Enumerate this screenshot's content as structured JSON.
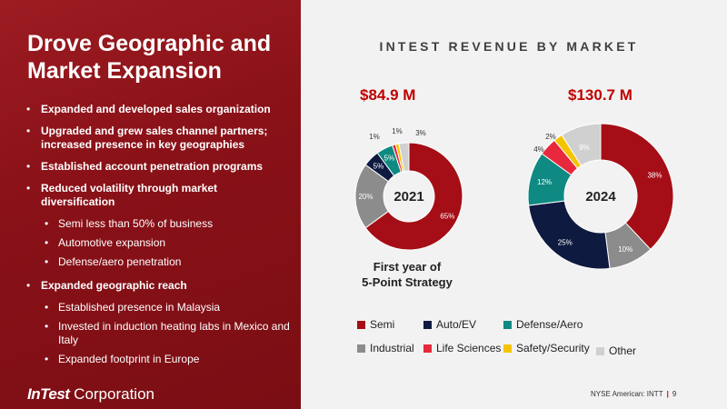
{
  "left_panel": {
    "title": "Drove Geographic and Market Expansion",
    "bullets": [
      {
        "text": "Expanded and developed sales organization",
        "level": 1
      },
      {
        "text": "Upgraded and grew sales channel partners; increased presence in key geographies",
        "level": 1
      },
      {
        "text": "Established account penetration programs",
        "level": 1
      },
      {
        "text": "Reduced volatility through market diversification",
        "level": 1
      },
      {
        "text": "Semi less than 50% of business",
        "level": 2
      },
      {
        "text": "Automotive expansion",
        "level": 2
      },
      {
        "text": "Defense/aero penetration",
        "level": 2
      },
      {
        "text": "Expanded geographic reach",
        "level": 1
      },
      {
        "text": "Established presence in Malaysia",
        "level": 2
      },
      {
        "text": "Invested in induction heating labs in Mexico and Italy",
        "level": 2
      },
      {
        "text": "Expanded footprint in Europe",
        "level": 2
      }
    ],
    "bullet_glyph": "•",
    "logo": {
      "brand": "InTest",
      "suffix": " Corporation"
    }
  },
  "right_panel": {
    "title": "INTEST REVENUE BY MARKET",
    "strategy_note_line1": "First year of",
    "strategy_note_line2": "5-Point Strategy"
  },
  "footer": {
    "exchange": "NYSE American: INTT",
    "separator": "|",
    "page_number": "9"
  },
  "chart_data": {
    "type": "pie",
    "variant": "donut",
    "title": "INTEST REVENUE BY MARKET",
    "categories": [
      "Semi",
      "Auto/EV",
      "Defense/Aero",
      "Industrial",
      "Life Sciences",
      "Safety/Security",
      "Other"
    ],
    "colors": [
      "#a50e16",
      "#0e1a40",
      "#0e8a82",
      "#8c8c8c",
      "#e8283c",
      "#f5c400",
      "#d0d0d0"
    ],
    "series": [
      {
        "name": "2021",
        "total_label": "$84.9 M",
        "values": [
          65,
          5,
          5,
          20,
          1,
          1,
          3
        ],
        "labels": [
          "65%",
          "5%",
          "5%",
          "20%",
          "1%",
          "1%",
          "3%"
        ]
      },
      {
        "name": "2024",
        "total_label": "$130.7 M",
        "values": [
          38,
          25,
          12,
          10,
          4,
          2,
          9
        ],
        "labels": [
          "38%",
          "25%",
          "12%",
          "10%",
          "4%",
          "2%",
          "9%"
        ]
      }
    ],
    "legend_position": "bottom"
  }
}
